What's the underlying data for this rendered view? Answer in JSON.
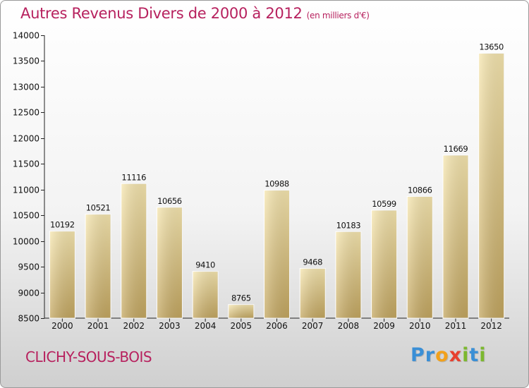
{
  "title": "Autres Revenus Divers de 2000 à 2012",
  "subtitle": "(en milliers d'€)",
  "city": "CLICHY-SOUS-BOIS",
  "logo": {
    "letters": [
      "P",
      "r",
      "o",
      "x",
      "i",
      "t",
      "i"
    ],
    "colors": [
      "#3a8fd6",
      "#3a8fd6",
      "#f2a11b",
      "#e8402e",
      "#7cb82f",
      "#3a8fd6",
      "#7cb82f"
    ]
  },
  "chart_data": {
    "type": "bar",
    "categories": [
      "2000",
      "2001",
      "2002",
      "2003",
      "2004",
      "2005",
      "2006",
      "2007",
      "2008",
      "2009",
      "2010",
      "2011",
      "2012"
    ],
    "values": [
      10192,
      10521,
      11116,
      10656,
      9410,
      8765,
      10988,
      9468,
      10183,
      10599,
      10866,
      11669,
      13650
    ],
    "ylim": [
      8500,
      14000
    ],
    "yticks": [
      8500,
      9000,
      9500,
      10000,
      10500,
      11000,
      11500,
      12000,
      12500,
      13000,
      13500,
      14000
    ],
    "grid": false,
    "bar_color": "#e6cf8f"
  }
}
